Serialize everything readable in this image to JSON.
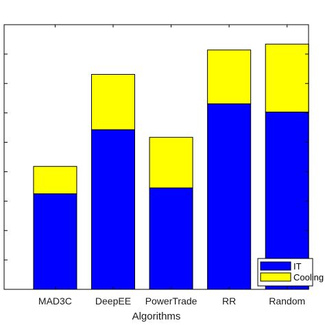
{
  "chart_data": {
    "type": "bar",
    "stacked": true,
    "categories": [
      "MAD3C",
      "DeepEE",
      "PowerTrade",
      "RR",
      "Random"
    ],
    "series": [
      {
        "name": "IT",
        "values": [
          3.25,
          5.43,
          3.45,
          6.31,
          6.03
        ],
        "color": "#0000ff"
      },
      {
        "name": "Cooling",
        "values": [
          0.93,
          1.88,
          1.72,
          1.83,
          2.31
        ],
        "color": "#ffff00"
      }
    ],
    "title": "",
    "xlabel": "Algorithms",
    "ylabel": "",
    "ylim": [
      0,
      9
    ],
    "ytick_count": 10,
    "grid": false,
    "legend": "bottom-right"
  }
}
